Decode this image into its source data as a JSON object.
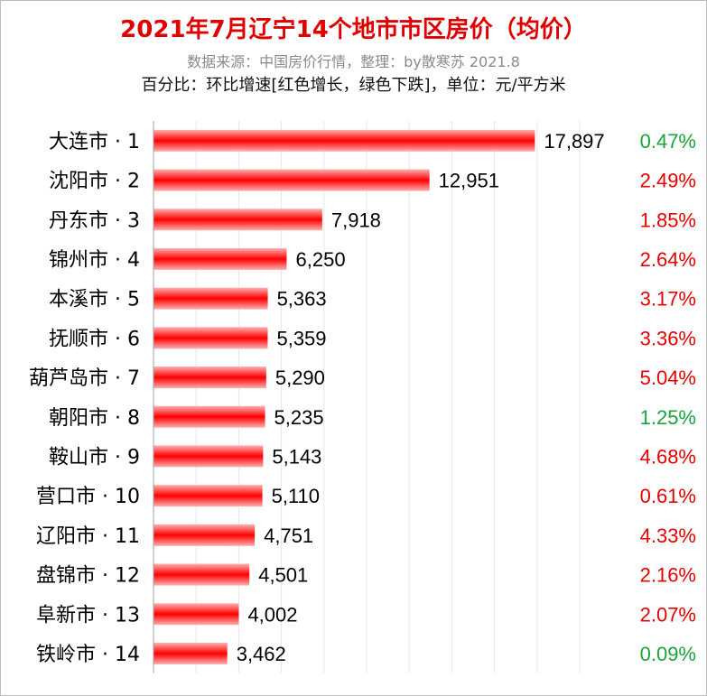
{
  "header": {
    "title": "2021年7月辽宁14个地市市区房价（均价）",
    "source": "数据来源：中国房价行情，整理：by散寒苏 2021.8",
    "note": "百分比：环比增速[红色增长，绿色下跌]，单位：元/平方米"
  },
  "colors": {
    "bar": "#ff0000",
    "bar_edge": "#ffb0b0",
    "increase": "#e60000",
    "decrease": "#1aa53a",
    "grid": "#e6e6e6",
    "axis": "#a0a0a0"
  },
  "chart_data": {
    "type": "bar",
    "orientation": "horizontal",
    "categories": [
      "大连市 · 1",
      "沈阳市 · 2",
      "丹东市 · 3",
      "锦州市 · 4",
      "本溪市 · 5",
      "抚顺市 · 6",
      "葫芦岛市 · 7",
      "朝阳市 · 8",
      "鞍山市 · 9",
      "营口市 · 10",
      "辽阳市 · 11",
      "盘锦市 · 12",
      "阜新市 · 13",
      "铁岭市 · 14"
    ],
    "values": [
      17897,
      12951,
      7918,
      6250,
      5363,
      5359,
      5290,
      5235,
      5143,
      5110,
      4751,
      4501,
      4002,
      3462
    ],
    "value_labels": [
      "17,897",
      "12,951",
      "7,918",
      "6,250",
      "5,363",
      "5,359",
      "5,290",
      "5,235",
      "5,143",
      "5,110",
      "4,751",
      "4,501",
      "4,002",
      "3,462"
    ],
    "changes": [
      "0.47%",
      "2.49%",
      "1.85%",
      "2.64%",
      "3.17%",
      "3.36%",
      "5.04%",
      "1.25%",
      "4.68%",
      "0.61%",
      "4.33%",
      "2.16%",
      "2.07%",
      "0.09%"
    ],
    "change_direction": [
      "down",
      "up",
      "up",
      "up",
      "up",
      "up",
      "up",
      "down",
      "up",
      "up",
      "up",
      "up",
      "up",
      "down"
    ],
    "xlim": [
      0,
      20000
    ],
    "grid": true,
    "legend": "none"
  }
}
